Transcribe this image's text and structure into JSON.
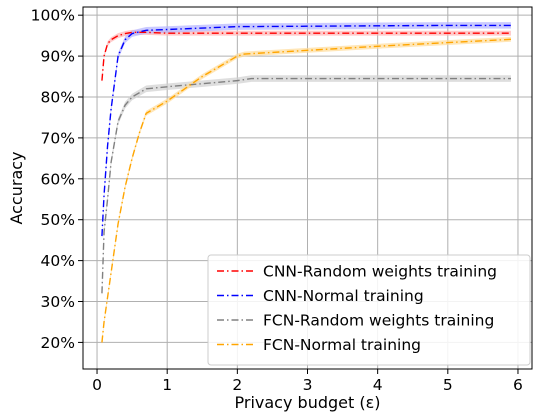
{
  "chart_data": {
    "type": "line",
    "xlabel": "Privacy budget (ε)",
    "ylabel": "Accuracy",
    "xlim": [
      -0.2,
      6.2
    ],
    "ylim": [
      0.135,
      1.02
    ],
    "xticks": [
      0,
      1,
      2,
      3,
      4,
      5,
      6
    ],
    "xtick_labels": [
      "0",
      "1",
      "2",
      "3",
      "4",
      "5",
      "6"
    ],
    "yticks": [
      0.2,
      0.3,
      0.4,
      0.5,
      0.6,
      0.7,
      0.8,
      0.9,
      1.0
    ],
    "ytick_labels": [
      "20%",
      "30%",
      "40%",
      "50%",
      "60%",
      "70%",
      "80%",
      "90%",
      "100%"
    ],
    "grid": true,
    "legend_position": "lower-right",
    "series": [
      {
        "name": "CNN-Random weights training",
        "color": "#ff0000",
        "band_color": "#ffb3b3",
        "x": [
          0.07,
          0.1,
          0.15,
          0.2,
          0.3,
          0.4,
          0.5,
          0.7,
          1.0,
          2.0,
          3.0,
          4.0,
          5.0,
          5.9
        ],
        "y": [
          0.84,
          0.9,
          0.93,
          0.94,
          0.95,
          0.955,
          0.958,
          0.958,
          0.956,
          0.956,
          0.956,
          0.956,
          0.956,
          0.956
        ],
        "band": 0.006
      },
      {
        "name": "CNN-Normal training",
        "color": "#0000ff",
        "band_color": "#b3b3ff",
        "x": [
          0.07,
          0.1,
          0.15,
          0.2,
          0.3,
          0.4,
          0.5,
          0.7,
          1.0,
          2.0,
          3.0,
          4.0,
          5.0,
          5.9
        ],
        "y": [
          0.46,
          0.56,
          0.68,
          0.77,
          0.9,
          0.94,
          0.955,
          0.963,
          0.965,
          0.972,
          0.973,
          0.974,
          0.975,
          0.975
        ],
        "band": 0.008
      },
      {
        "name": "FCN-Random weights training",
        "color": "#808080",
        "band_color": "#d0d0d0",
        "x": [
          0.07,
          0.1,
          0.15,
          0.2,
          0.3,
          0.4,
          0.5,
          0.7,
          1.0,
          2.0,
          2.2,
          3.0,
          4.0,
          5.0,
          5.9
        ],
        "y": [
          0.32,
          0.47,
          0.55,
          0.64,
          0.74,
          0.78,
          0.8,
          0.82,
          0.825,
          0.84,
          0.845,
          0.845,
          0.845,
          0.845,
          0.845
        ],
        "band": 0.008
      },
      {
        "name": "FCN-Normal training",
        "color": "#ffa500",
        "band_color": "#ffdc99",
        "x": [
          0.07,
          0.1,
          0.2,
          0.3,
          0.4,
          0.5,
          0.6,
          0.7,
          1.0,
          1.5,
          2.0,
          2.1,
          3.0,
          4.0,
          5.0,
          5.9
        ],
        "y": [
          0.2,
          0.25,
          0.37,
          0.49,
          0.58,
          0.65,
          0.71,
          0.76,
          0.79,
          0.85,
          0.9,
          0.905,
          0.914,
          0.924,
          0.933,
          0.941
        ],
        "band": 0.006
      }
    ]
  }
}
